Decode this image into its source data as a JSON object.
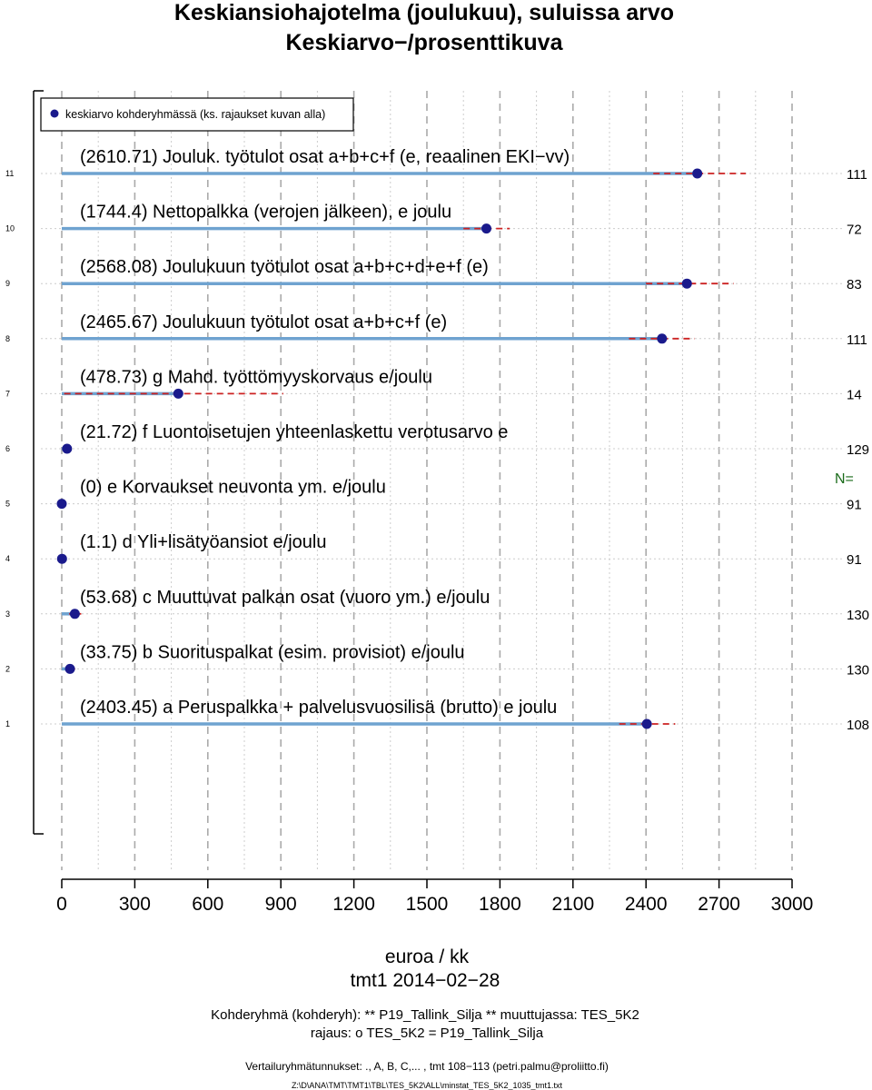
{
  "header": {
    "title": "Keskiansiohajotelma (joulukuu), suluissa arvo",
    "subtitle": "Keskiarvo−/prosenttikuva"
  },
  "legend": {
    "label": "keskiarvo kohderyhmässä (ks. rajaukset kuvan alla)"
  },
  "n_label": "N=",
  "chart_data": {
    "type": "dot",
    "title": "Keskiansiohajotelma (joulukuu), suluissa arvo",
    "subtitle": "Keskiarvo−/prosenttikuva",
    "xlabel": "euroa / kk",
    "xlim": [
      0,
      3000
    ],
    "xticks": [
      "0",
      "300",
      "600",
      "900",
      "1200",
      "1500",
      "1800",
      "2100",
      "2400",
      "2700",
      "3000"
    ],
    "legend_position": "top-left",
    "grid": true,
    "colors": {
      "bar": "#6fa3d0",
      "point": "#1a1a8c",
      "ci": "#cc2222",
      "n_label": "#1a6b1a"
    },
    "rows": [
      {
        "index": "11",
        "label": "(2610.71) Jouluk. työtulot osat a+b+c+f (e, reaalinen EKI−vv)",
        "value": 2610.71,
        "ci": [
          2430,
          2810
        ],
        "n": "111",
        "ci_style": "dashed"
      },
      {
        "index": "10",
        "label": "(1744.4) Nettopalkka (verojen jälkeen), e joulu",
        "value": 1744.4,
        "ci": [
          1650,
          1840
        ],
        "n": "72",
        "ci_style": "dashed"
      },
      {
        "index": "9",
        "label": "(2568.08) Joulukuun työtulot osat a+b+c+d+e+f (e)",
        "value": 2568.08,
        "ci": [
          2400,
          2760
        ],
        "n": "83",
        "ci_style": "dashed"
      },
      {
        "index": "8",
        "label": "(2465.67) Joulukuun työtulot osat a+b+c+f (e)",
        "value": 2465.67,
        "ci": [
          2330,
          2600
        ],
        "n": "111",
        "ci_style": "dashed"
      },
      {
        "index": "7",
        "label": "(478.73) g Mahd. työttömyyskorvaus e/joulu",
        "value": 478.73,
        "ci": [
          10,
          910
        ],
        "n": "14",
        "ci_style": "dashed"
      },
      {
        "index": "6",
        "label": "(21.72) f Luontoisetujen yhteenlaskettu verotusarvo e",
        "value": 21.72,
        "ci": [
          5,
          40
        ],
        "n": "129",
        "ci_style": "solid"
      },
      {
        "index": "5",
        "label": "(0) e Korvaukset neuvonta ym. e/joulu",
        "value": 0,
        "ci": [
          0,
          0
        ],
        "n": "91",
        "ci_style": "solid"
      },
      {
        "index": "4",
        "label": "(1.1) d Yli+lisätyöansiot e/joulu",
        "value": 1.1,
        "ci": [
          0,
          3
        ],
        "n": "91",
        "ci_style": "solid"
      },
      {
        "index": "3",
        "label": "(53.68) c Muuttuvat palkan osat (vuoro ym.) e/joulu",
        "value": 53.68,
        "ci": [
          30,
          80
        ],
        "n": "130",
        "ci_style": "solid"
      },
      {
        "index": "2",
        "label": "(33.75) b Suorituspalkat (esim. provisiot) e/joulu",
        "value": 33.75,
        "ci": [
          15,
          55
        ],
        "n": "130",
        "ci_style": "solid"
      },
      {
        "index": "1",
        "label": "(2403.45) a Peruspalkka + palvelusvuosilisä (brutto) e joulu",
        "value": 2403.45,
        "ci": [
          2290,
          2520
        ],
        "n": "108",
        "ci_style": "dashed"
      }
    ]
  },
  "footer": {
    "date": "tmt1 2014−02−28",
    "target_group": "Kohderyhmä (kohderyh): ** P19_Tallink_Silja ** muuttujassa:  TES_5K2",
    "restriction": "rajaus:  o TES_5K2 = P19_Tallink_Silja",
    "comparison": "Vertailuryhmätunnukset: ., A, B, C,...   , tmt 108−113 (petri.palmu@proliitto.fi)",
    "path": "Z:\\D\\ANA\\TMT\\TMT1\\TBL\\TES_5K2\\ALL\\minstat_TES_5K2_1035_tmt1.txt"
  }
}
